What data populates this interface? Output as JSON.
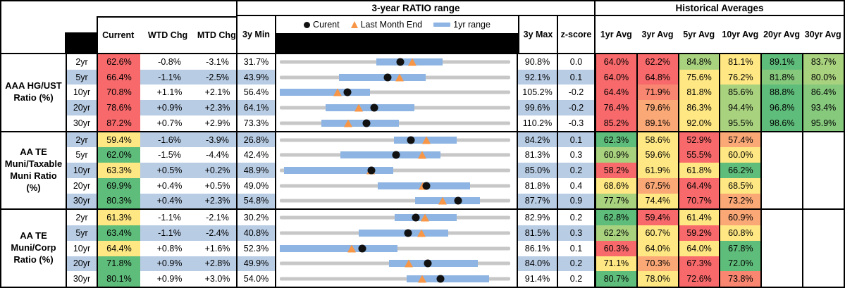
{
  "header": {
    "chart_title": "3-year RATIO range",
    "hist_title": "Historical Averages",
    "cols": {
      "current": "Current",
      "wtd": "WTD Chg",
      "mtd": "MTD Chg",
      "min": "3y Min",
      "max": "3y Max",
      "z": "z-score"
    },
    "avg_cols": [
      "1yr Avg",
      "3yr Avg",
      "5yr Avg",
      "10yr Avg",
      "20yr Avg",
      "30yr Avg"
    ],
    "legend": [
      {
        "marker": "dot-icon",
        "label": "Curent"
      },
      {
        "marker": "triangle-icon",
        "label": "Last Month End"
      },
      {
        "marker": "bar-icon",
        "label": "1yr range"
      }
    ]
  },
  "colors": {
    "red": "#F8696B",
    "salmon": "#F98670",
    "orange": "#FBA877",
    "yellow": "#FFE883",
    "ltgreen": "#A9D27F",
    "green2": "#86C97D",
    "green": "#5FBD7B",
    "blank": "#FFFFFF",
    "band_blue": "#B8CCE4",
    "bar_blue": "#8DB4E2",
    "track_gray": "#C7C7C7",
    "triangle_orange": "#F79646"
  },
  "groups": [
    {
      "label": "AAA HG/UST\nRatio (%)",
      "rows": [
        {
          "m": "2yr",
          "cur": "62.6%",
          "cc": "red",
          "wtd": "-0.8%",
          "mtd": "-3.1%",
          "min": "31.7%",
          "max": "90.8%",
          "z": "0.0",
          "ax": [
            31.7,
            90.8
          ],
          "bar": [
            56.4,
            73.4
          ],
          "dot": 62.6,
          "tri": 65.7,
          "avg": [
            [
              "64.0%",
              "red"
            ],
            [
              "62.2%",
              "red"
            ],
            [
              "84.8%",
              "ltgreen"
            ],
            [
              "81.1%",
              "yellow"
            ],
            [
              "89.1%",
              "green"
            ],
            [
              "83.7%",
              "ltgreen"
            ]
          ]
        },
        {
          "m": "5yr",
          "cur": "66.4%",
          "cc": "red",
          "wtd": "-1.1%",
          "mtd": "-2.5%",
          "min": "43.9%",
          "max": "92.1%",
          "z": "0.1",
          "ax": [
            43.9,
            92.1
          ],
          "bar": [
            56.3,
            74.4
          ],
          "dot": 66.4,
          "tri": 68.9,
          "avg": [
            [
              "64.0%",
              "red"
            ],
            [
              "64.8%",
              "red"
            ],
            [
              "75.6%",
              "yellow"
            ],
            [
              "76.2%",
              "yellow"
            ],
            [
              "81.8%",
              "green2"
            ],
            [
              "80.0%",
              "ltgreen"
            ]
          ]
        },
        {
          "m": "10yr",
          "cur": "70.8%",
          "cc": "red",
          "wtd": "+1.1%",
          "mtd": "+2.1%",
          "min": "56.4%",
          "max": "105.2%",
          "z": "-0.2",
          "ax": [
            56.4,
            105.2
          ],
          "bar": [
            56.4,
            75.5
          ],
          "dot": 70.8,
          "tri": 68.7,
          "avg": [
            [
              "64.4%",
              "red"
            ],
            [
              "71.9%",
              "salmon"
            ],
            [
              "81.8%",
              "yellow"
            ],
            [
              "85.6%",
              "ltgreen"
            ],
            [
              "88.8%",
              "green"
            ],
            [
              "86.4%",
              "green2"
            ]
          ]
        },
        {
          "m": "20yr",
          "cur": "78.6%",
          "cc": "red",
          "wtd": "+0.9%",
          "mtd": "+2.3%",
          "min": "64.1%",
          "max": "99.6%",
          "z": "-0.2",
          "ax": [
            64.1,
            99.6
          ],
          "bar": [
            71.2,
            84.8
          ],
          "dot": 78.6,
          "tri": 76.3,
          "avg": [
            [
              "76.4%",
              "red"
            ],
            [
              "79.6%",
              "orange"
            ],
            [
              "86.3%",
              "yellow"
            ],
            [
              "94.4%",
              "ltgreen"
            ],
            [
              "96.8%",
              "green"
            ],
            [
              "93.4%",
              "green2"
            ]
          ]
        },
        {
          "m": "30yr",
          "cur": "87.2%",
          "cc": "red",
          "wtd": "+0.7%",
          "mtd": "+2.9%",
          "min": "73.3%",
          "max": "110.2%",
          "z": "-0.3",
          "ax": [
            73.3,
            110.2
          ],
          "bar": [
            80.0,
            92.4
          ],
          "dot": 87.2,
          "tri": 84.3,
          "avg": [
            [
              "85.2%",
              "red"
            ],
            [
              "89.1%",
              "orange"
            ],
            [
              "92.0%",
              "yellow"
            ],
            [
              "95.5%",
              "ltgreen"
            ],
            [
              "98.6%",
              "green"
            ],
            [
              "95.9%",
              "green2"
            ]
          ]
        }
      ]
    },
    {
      "label": "AA TE\nMuni/Taxable\nMuni Ratio\n(%)",
      "rows": [
        {
          "m": "2yr",
          "cur": "59.4%",
          "cc": "yellow",
          "wtd": "-1.6%",
          "mtd": "-3.9%",
          "min": "26.8%",
          "max": "84.2%",
          "z": "0.1",
          "ax": [
            26.8,
            84.2
          ],
          "bar": [
            55.2,
            70.8
          ],
          "dot": 59.4,
          "tri": 63.3,
          "avg": [
            [
              "62.3%",
              "green"
            ],
            [
              "58.6%",
              "yellow"
            ],
            [
              "52.9%",
              "red"
            ],
            [
              "57.4%",
              "orange"
            ],
            [
              "",
              "blank"
            ],
            [
              "",
              "blank"
            ]
          ]
        },
        {
          "m": "5yr",
          "cur": "62.0%",
          "cc": "green",
          "wtd": "-1.5%",
          "mtd": "-4.4%",
          "min": "42.4%",
          "max": "81.3%",
          "z": "0.3",
          "ax": [
            42.4,
            81.3
          ],
          "bar": [
            52.6,
            69.5
          ],
          "dot": 62.0,
          "tri": 66.4,
          "avg": [
            [
              "60.9%",
              "ltgreen"
            ],
            [
              "59.6%",
              "yellow"
            ],
            [
              "55.5%",
              "red"
            ],
            [
              "60.0%",
              "yellow"
            ],
            [
              "",
              "blank"
            ],
            [
              "",
              "blank"
            ]
          ]
        },
        {
          "m": "10yr",
          "cur": "63.3%",
          "cc": "yellow",
          "wtd": "+0.5%",
          "mtd": "+0.2%",
          "min": "48.9%",
          "max": "85.0%",
          "z": "0.2",
          "ax": [
            48.9,
            85.0
          ],
          "bar": [
            49.6,
            66.7
          ],
          "dot": 63.3,
          "tri": 63.1,
          "avg": [
            [
              "58.2%",
              "red"
            ],
            [
              "61.9%",
              "yellow"
            ],
            [
              "61.8%",
              "yellow"
            ],
            [
              "66.2%",
              "green"
            ],
            [
              "",
              "blank"
            ],
            [
              "",
              "blank"
            ]
          ]
        },
        {
          "m": "20yr",
          "cur": "69.9%",
          "cc": "green",
          "wtd": "+0.4%",
          "mtd": "+0.5%",
          "min": "49.0%",
          "max": "81.8%",
          "z": "0.4",
          "ax": [
            49.0,
            81.8
          ],
          "bar": [
            62.9,
            76.1
          ],
          "dot": 69.9,
          "tri": 69.4,
          "avg": [
            [
              "68.6%",
              "yellow"
            ],
            [
              "67.5%",
              "orange"
            ],
            [
              "64.4%",
              "red"
            ],
            [
              "68.5%",
              "yellow"
            ],
            [
              "",
              "blank"
            ],
            [
              "",
              "blank"
            ]
          ]
        },
        {
          "m": "30yr",
          "cur": "80.3%",
          "cc": "green",
          "wtd": "+0.4%",
          "mtd": "+2.3%",
          "min": "54.8%",
          "max": "87.7%",
          "z": "0.9",
          "ax": [
            54.8,
            87.7
          ],
          "bar": [
            74.1,
            83.4
          ],
          "dot": 80.3,
          "tri": 78.0,
          "avg": [
            [
              "77.7%",
              "ltgreen"
            ],
            [
              "74.4%",
              "yellow"
            ],
            [
              "70.7%",
              "red"
            ],
            [
              "73.2%",
              "orange"
            ],
            [
              "",
              "blank"
            ],
            [
              "",
              "blank"
            ]
          ]
        }
      ]
    },
    {
      "label": "AA TE\nMuni/Corp\nRatio (%)",
      "rows": [
        {
          "m": "2yr",
          "cur": "61.3%",
          "cc": "yellow",
          "wtd": "-1.1%",
          "mtd": "-2.1%",
          "min": "30.2%",
          "max": "82.9%",
          "z": "0.2",
          "ax": [
            30.2,
            82.9
          ],
          "bar": [
            56.4,
            70.6
          ],
          "dot": 61.3,
          "tri": 63.4,
          "avg": [
            [
              "62.8%",
              "green"
            ],
            [
              "59.4%",
              "red"
            ],
            [
              "61.4%",
              "yellow"
            ],
            [
              "60.9%",
              "orange"
            ],
            [
              "",
              "blank"
            ],
            [
              "",
              "blank"
            ]
          ]
        },
        {
          "m": "5yr",
          "cur": "63.4%",
          "cc": "green",
          "wtd": "-1.1%",
          "mtd": "-2.4%",
          "min": "40.8%",
          "max": "81.5%",
          "z": "0.3",
          "ax": [
            40.8,
            81.5
          ],
          "bar": [
            54.7,
            70.5
          ],
          "dot": 63.4,
          "tri": 65.8,
          "avg": [
            [
              "62.2%",
              "ltgreen"
            ],
            [
              "60.7%",
              "yellow"
            ],
            [
              "59.2%",
              "red"
            ],
            [
              "60.8%",
              "yellow"
            ],
            [
              "",
              "blank"
            ],
            [
              "",
              "blank"
            ]
          ]
        },
        {
          "m": "10yr",
          "cur": "64.4%",
          "cc": "yellow",
          "wtd": "+0.8%",
          "mtd": "+1.6%",
          "min": "52.3%",
          "max": "86.1%",
          "z": "0.1",
          "ax": [
            52.3,
            86.1
          ],
          "bar": [
            52.3,
            69.6
          ],
          "dot": 64.4,
          "tri": 62.8,
          "avg": [
            [
              "60.3%",
              "red"
            ],
            [
              "64.0%",
              "yellow"
            ],
            [
              "64.0%",
              "yellow"
            ],
            [
              "67.8%",
              "green"
            ],
            [
              "",
              "blank"
            ],
            [
              "",
              "blank"
            ]
          ]
        },
        {
          "m": "20yr",
          "cur": "71.8%",
          "cc": "green",
          "wtd": "+0.9%",
          "mtd": "+2.8%",
          "min": "49.9%",
          "max": "84.0%",
          "z": "0.2",
          "ax": [
            49.9,
            84.0
          ],
          "bar": [
            66.1,
            79.2
          ],
          "dot": 71.8,
          "tri": 69.0,
          "avg": [
            [
              "71.1%",
              "yellow"
            ],
            [
              "70.3%",
              "orange"
            ],
            [
              "67.3%",
              "red"
            ],
            [
              "72.0%",
              "green"
            ],
            [
              "",
              "blank"
            ],
            [
              "",
              "blank"
            ]
          ]
        },
        {
          "m": "30yr",
          "cur": "80.1%",
          "cc": "green",
          "wtd": "+0.9%",
          "mtd": "+3.0%",
          "min": "54.0%",
          "max": "91.4%",
          "z": "0.2",
          "ax": [
            54.0,
            91.4
          ],
          "bar": [
            74.6,
            88.0
          ],
          "dot": 80.1,
          "tri": 77.1,
          "avg": [
            [
              "80.7%",
              "green"
            ],
            [
              "78.0%",
              "yellow"
            ],
            [
              "72.6%",
              "red"
            ],
            [
              "73.8%",
              "salmon"
            ],
            [
              "",
              "blank"
            ],
            [
              "",
              "blank"
            ]
          ]
        }
      ]
    }
  ],
  "chart_data": {
    "type": "table",
    "title": "3-year RATIO range",
    "note": "Each row is a horizontal range strip scaled from its own 3y Min to 3y Max; blue bar = 1yr range, black dot = current, orange triangle = last month end.",
    "rows": [
      {
        "group": "AAA HG/UST",
        "maturity": "2yr",
        "axis": [
          31.7,
          90.8
        ],
        "range_1yr": [
          56.4,
          73.4
        ],
        "current": 62.6,
        "last_month_end": 65.7
      },
      {
        "group": "AAA HG/UST",
        "maturity": "5yr",
        "axis": [
          43.9,
          92.1
        ],
        "range_1yr": [
          56.3,
          74.4
        ],
        "current": 66.4,
        "last_month_end": 68.9
      },
      {
        "group": "AAA HG/UST",
        "maturity": "10yr",
        "axis": [
          56.4,
          105.2
        ],
        "range_1yr": [
          56.4,
          75.5
        ],
        "current": 70.8,
        "last_month_end": 68.7
      },
      {
        "group": "AAA HG/UST",
        "maturity": "20yr",
        "axis": [
          64.1,
          99.6
        ],
        "range_1yr": [
          71.2,
          84.8
        ],
        "current": 78.6,
        "last_month_end": 76.3
      },
      {
        "group": "AAA HG/UST",
        "maturity": "30yr",
        "axis": [
          73.3,
          110.2
        ],
        "range_1yr": [
          80.0,
          92.4
        ],
        "current": 87.2,
        "last_month_end": 84.3
      },
      {
        "group": "AA TE Muni/Taxable Muni",
        "maturity": "2yr",
        "axis": [
          26.8,
          84.2
        ],
        "range_1yr": [
          55.2,
          70.8
        ],
        "current": 59.4,
        "last_month_end": 63.3
      },
      {
        "group": "AA TE Muni/Taxable Muni",
        "maturity": "5yr",
        "axis": [
          42.4,
          81.3
        ],
        "range_1yr": [
          52.6,
          69.5
        ],
        "current": 62.0,
        "last_month_end": 66.4
      },
      {
        "group": "AA TE Muni/Taxable Muni",
        "maturity": "10yr",
        "axis": [
          48.9,
          85.0
        ],
        "range_1yr": [
          49.6,
          66.7
        ],
        "current": 63.3,
        "last_month_end": 63.1
      },
      {
        "group": "AA TE Muni/Taxable Muni",
        "maturity": "20yr",
        "axis": [
          49.0,
          81.8
        ],
        "range_1yr": [
          62.9,
          76.1
        ],
        "current": 69.9,
        "last_month_end": 69.4
      },
      {
        "group": "AA TE Muni/Taxable Muni",
        "maturity": "30yr",
        "axis": [
          54.8,
          87.7
        ],
        "range_1yr": [
          74.1,
          83.4
        ],
        "current": 80.3,
        "last_month_end": 78.0
      },
      {
        "group": "AA TE Muni/Corp",
        "maturity": "2yr",
        "axis": [
          30.2,
          82.9
        ],
        "range_1yr": [
          56.4,
          70.6
        ],
        "current": 61.3,
        "last_month_end": 63.4
      },
      {
        "group": "AA TE Muni/Corp",
        "maturity": "5yr",
        "axis": [
          40.8,
          81.5
        ],
        "range_1yr": [
          54.7,
          70.5
        ],
        "current": 63.4,
        "last_month_end": 65.8
      },
      {
        "group": "AA TE Muni/Corp",
        "maturity": "10yr",
        "axis": [
          52.3,
          86.1
        ],
        "range_1yr": [
          52.3,
          69.6
        ],
        "current": 64.4,
        "last_month_end": 62.8
      },
      {
        "group": "AA TE Muni/Corp",
        "maturity": "20yr",
        "axis": [
          49.9,
          84.0
        ],
        "range_1yr": [
          66.1,
          79.2
        ],
        "current": 71.8,
        "last_month_end": 69.0
      },
      {
        "group": "AA TE Muni/Corp",
        "maturity": "30yr",
        "axis": [
          54.0,
          91.4
        ],
        "range_1yr": [
          74.6,
          88.0
        ],
        "current": 80.1,
        "last_month_end": 77.1
      }
    ]
  }
}
